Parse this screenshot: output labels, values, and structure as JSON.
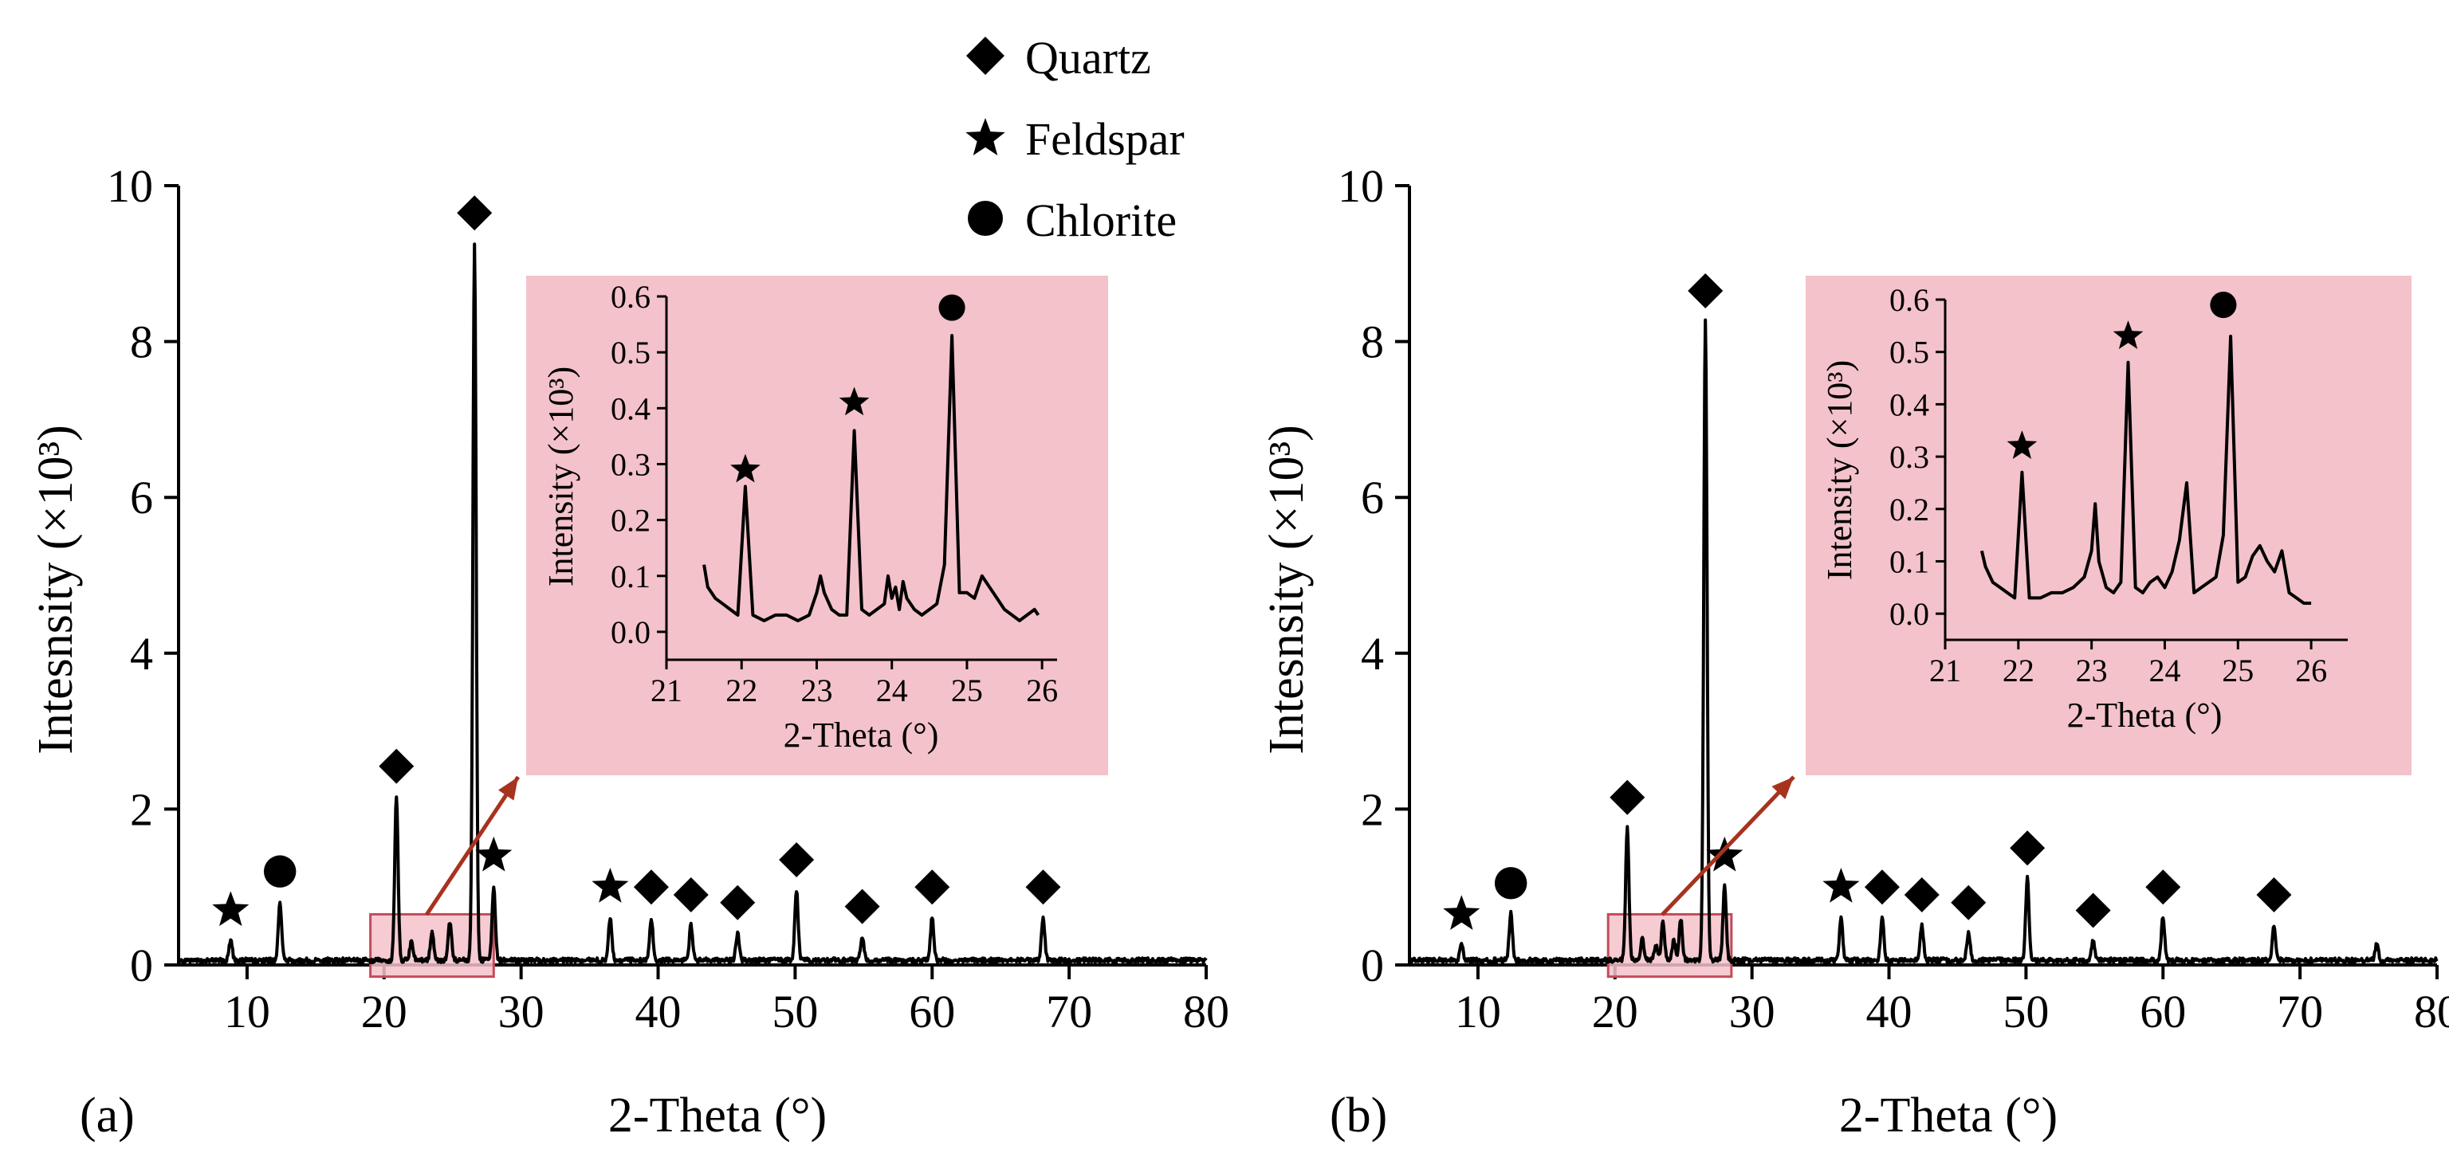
{
  "legend": {
    "placement": "top-center",
    "items": [
      {
        "marker": "diamond",
        "label": "Quartz"
      },
      {
        "marker": "star",
        "label": "Feldspar"
      },
      {
        "marker": "circle",
        "label": "Chlorite"
      }
    ]
  },
  "colors": {
    "inset_background": "#f4c2ca",
    "zoom_box_fill": "#f4c2ca",
    "zoom_box_stroke": "#c44b5a",
    "arrow": "#a8321e",
    "line": "#000000"
  },
  "chart_data": [
    {
      "type": "line",
      "panel_label": "(a)",
      "xlabel": "2-Theta (°)",
      "ylabel": "Intesnsity (×10³)",
      "xlim": [
        5,
        80
      ],
      "ylim": [
        0,
        10
      ],
      "xticks": [
        10,
        20,
        30,
        40,
        50,
        60,
        70,
        80
      ],
      "yticks": [
        0,
        2,
        4,
        6,
        8,
        10
      ],
      "baseline": 0.06,
      "peaks": [
        {
          "x": 8.8,
          "y": 0.25,
          "phase": "Feldspar"
        },
        {
          "x": 12.4,
          "y": 0.75,
          "phase": "Chlorite"
        },
        {
          "x": 20.9,
          "y": 2.1,
          "phase": "Quartz"
        },
        {
          "x": 22.0,
          "y": 0.25,
          "phase": ""
        },
        {
          "x": 23.5,
          "y": 0.35,
          "phase": ""
        },
        {
          "x": 24.8,
          "y": 0.5,
          "phase": ""
        },
        {
          "x": 26.6,
          "y": 9.2,
          "phase": "Quartz"
        },
        {
          "x": 28.0,
          "y": 0.95,
          "phase": "Feldspar"
        },
        {
          "x": 36.5,
          "y": 0.55,
          "phase": "Feldspar"
        },
        {
          "x": 39.5,
          "y": 0.55,
          "phase": "Quartz"
        },
        {
          "x": 42.4,
          "y": 0.45,
          "phase": "Quartz"
        },
        {
          "x": 45.8,
          "y": 0.35,
          "phase": "Quartz"
        },
        {
          "x": 50.1,
          "y": 0.9,
          "phase": "Quartz"
        },
        {
          "x": 54.9,
          "y": 0.3,
          "phase": "Quartz"
        },
        {
          "x": 60.0,
          "y": 0.55,
          "phase": "Quartz"
        },
        {
          "x": 68.1,
          "y": 0.55,
          "phase": "Quartz"
        }
      ],
      "zoom_region": {
        "x": [
          19,
          28
        ],
        "y": [
          -0.15,
          0.65
        ]
      },
      "inset": {
        "xlabel": "2-Theta (°)",
        "ylabel": "Intensity (×10³)",
        "xlim": [
          21,
          26.2
        ],
        "ylim": [
          -0.05,
          0.6
        ],
        "xticks": [
          21,
          22,
          23,
          24,
          25,
          26
        ],
        "yticks": [
          0.0,
          0.1,
          0.2,
          0.3,
          0.4,
          0.5,
          0.6
        ],
        "x": [
          21.5,
          21.55,
          21.65,
          21.75,
          21.85,
          21.95,
          22.05,
          22.15,
          22.3,
          22.45,
          22.6,
          22.75,
          22.9,
          23.0,
          23.05,
          23.1,
          23.2,
          23.3,
          23.4,
          23.5,
          23.6,
          23.7,
          23.8,
          23.9,
          23.95,
          24.0,
          24.05,
          24.1,
          24.15,
          24.2,
          24.3,
          24.4,
          24.5,
          24.6,
          24.7,
          24.8,
          24.9,
          25.0,
          25.1,
          25.2,
          25.3,
          25.4,
          25.5,
          25.6,
          25.7,
          25.8,
          25.9,
          25.95
        ],
        "y": [
          0.12,
          0.08,
          0.06,
          0.05,
          0.04,
          0.03,
          0.26,
          0.03,
          0.02,
          0.03,
          0.03,
          0.02,
          0.03,
          0.07,
          0.1,
          0.07,
          0.04,
          0.03,
          0.03,
          0.36,
          0.04,
          0.03,
          0.04,
          0.05,
          0.1,
          0.06,
          0.08,
          0.04,
          0.09,
          0.06,
          0.04,
          0.03,
          0.04,
          0.05,
          0.12,
          0.53,
          0.07,
          0.07,
          0.06,
          0.1,
          0.08,
          0.06,
          0.04,
          0.03,
          0.02,
          0.03,
          0.04,
          0.03
        ],
        "markers": [
          {
            "x": 22.05,
            "y": 0.29,
            "phase": "Feldspar"
          },
          {
            "x": 23.5,
            "y": 0.41,
            "phase": "Feldspar"
          },
          {
            "x": 24.8,
            "y": 0.58,
            "phase": "Chlorite"
          }
        ]
      }
    },
    {
      "type": "line",
      "panel_label": "(b)",
      "xlabel": "2-Theta (°)",
      "ylabel": "Intesnsity (×10³)",
      "xlim": [
        5,
        80
      ],
      "ylim": [
        0,
        10
      ],
      "xticks": [
        10,
        20,
        30,
        40,
        50,
        60,
        70,
        80
      ],
      "yticks": [
        0,
        2,
        4,
        6,
        8,
        10
      ],
      "baseline": 0.06,
      "peaks": [
        {
          "x": 8.8,
          "y": 0.2,
          "phase": "Feldspar"
        },
        {
          "x": 12.4,
          "y": 0.6,
          "phase": "Chlorite"
        },
        {
          "x": 20.9,
          "y": 1.7,
          "phase": "Quartz"
        },
        {
          "x": 22.0,
          "y": 0.27,
          "phase": ""
        },
        {
          "x": 23.0,
          "y": 0.2,
          "phase": ""
        },
        {
          "x": 23.5,
          "y": 0.48,
          "phase": ""
        },
        {
          "x": 24.3,
          "y": 0.25,
          "phase": ""
        },
        {
          "x": 24.8,
          "y": 0.53,
          "phase": ""
        },
        {
          "x": 26.6,
          "y": 8.2,
          "phase": "Quartz"
        },
        {
          "x": 28.0,
          "y": 0.95,
          "phase": "Feldspar"
        },
        {
          "x": 36.5,
          "y": 0.55,
          "phase": "Feldspar"
        },
        {
          "x": 39.5,
          "y": 0.55,
          "phase": "Quartz"
        },
        {
          "x": 42.4,
          "y": 0.45,
          "phase": "Quartz"
        },
        {
          "x": 45.8,
          "y": 0.35,
          "phase": "Quartz"
        },
        {
          "x": 50.1,
          "y": 1.05,
          "phase": "Quartz"
        },
        {
          "x": 54.9,
          "y": 0.25,
          "phase": "Quartz"
        },
        {
          "x": 60.0,
          "y": 0.55,
          "phase": "Quartz"
        },
        {
          "x": 68.1,
          "y": 0.45,
          "phase": "Quartz"
        },
        {
          "x": 75.6,
          "y": 0.2,
          "phase": ""
        }
      ],
      "zoom_region": {
        "x": [
          19.5,
          28.5
        ],
        "y": [
          -0.15,
          0.65
        ]
      },
      "inset": {
        "xlabel": "2-Theta (°)",
        "ylabel": "Intensity (×10³)",
        "xlim": [
          21,
          26.5
        ],
        "ylim": [
          -0.05,
          0.6
        ],
        "xticks": [
          21,
          22,
          23,
          24,
          25,
          26
        ],
        "yticks": [
          0.0,
          0.1,
          0.2,
          0.3,
          0.4,
          0.5,
          0.6
        ],
        "x": [
          21.5,
          21.55,
          21.65,
          21.75,
          21.85,
          21.95,
          22.05,
          22.15,
          22.3,
          22.45,
          22.6,
          22.75,
          22.9,
          23.0,
          23.05,
          23.1,
          23.2,
          23.3,
          23.4,
          23.5,
          23.6,
          23.7,
          23.8,
          23.9,
          24.0,
          24.1,
          24.2,
          24.3,
          24.4,
          24.5,
          24.6,
          24.7,
          24.8,
          24.9,
          25.0,
          25.1,
          25.2,
          25.3,
          25.4,
          25.5,
          25.6,
          25.7,
          25.8,
          25.9,
          26.0
        ],
        "y": [
          0.12,
          0.09,
          0.06,
          0.05,
          0.04,
          0.03,
          0.27,
          0.03,
          0.03,
          0.04,
          0.04,
          0.05,
          0.07,
          0.12,
          0.21,
          0.1,
          0.05,
          0.04,
          0.06,
          0.48,
          0.05,
          0.04,
          0.06,
          0.07,
          0.05,
          0.08,
          0.14,
          0.25,
          0.04,
          0.05,
          0.06,
          0.07,
          0.15,
          0.53,
          0.06,
          0.07,
          0.11,
          0.13,
          0.1,
          0.08,
          0.12,
          0.04,
          0.03,
          0.02,
          0.02
        ],
        "markers": [
          {
            "x": 22.05,
            "y": 0.32,
            "phase": "Feldspar"
          },
          {
            "x": 23.5,
            "y": 0.53,
            "phase": "Feldspar"
          },
          {
            "x": 24.8,
            "y": 0.59,
            "phase": "Chlorite"
          }
        ]
      }
    }
  ]
}
